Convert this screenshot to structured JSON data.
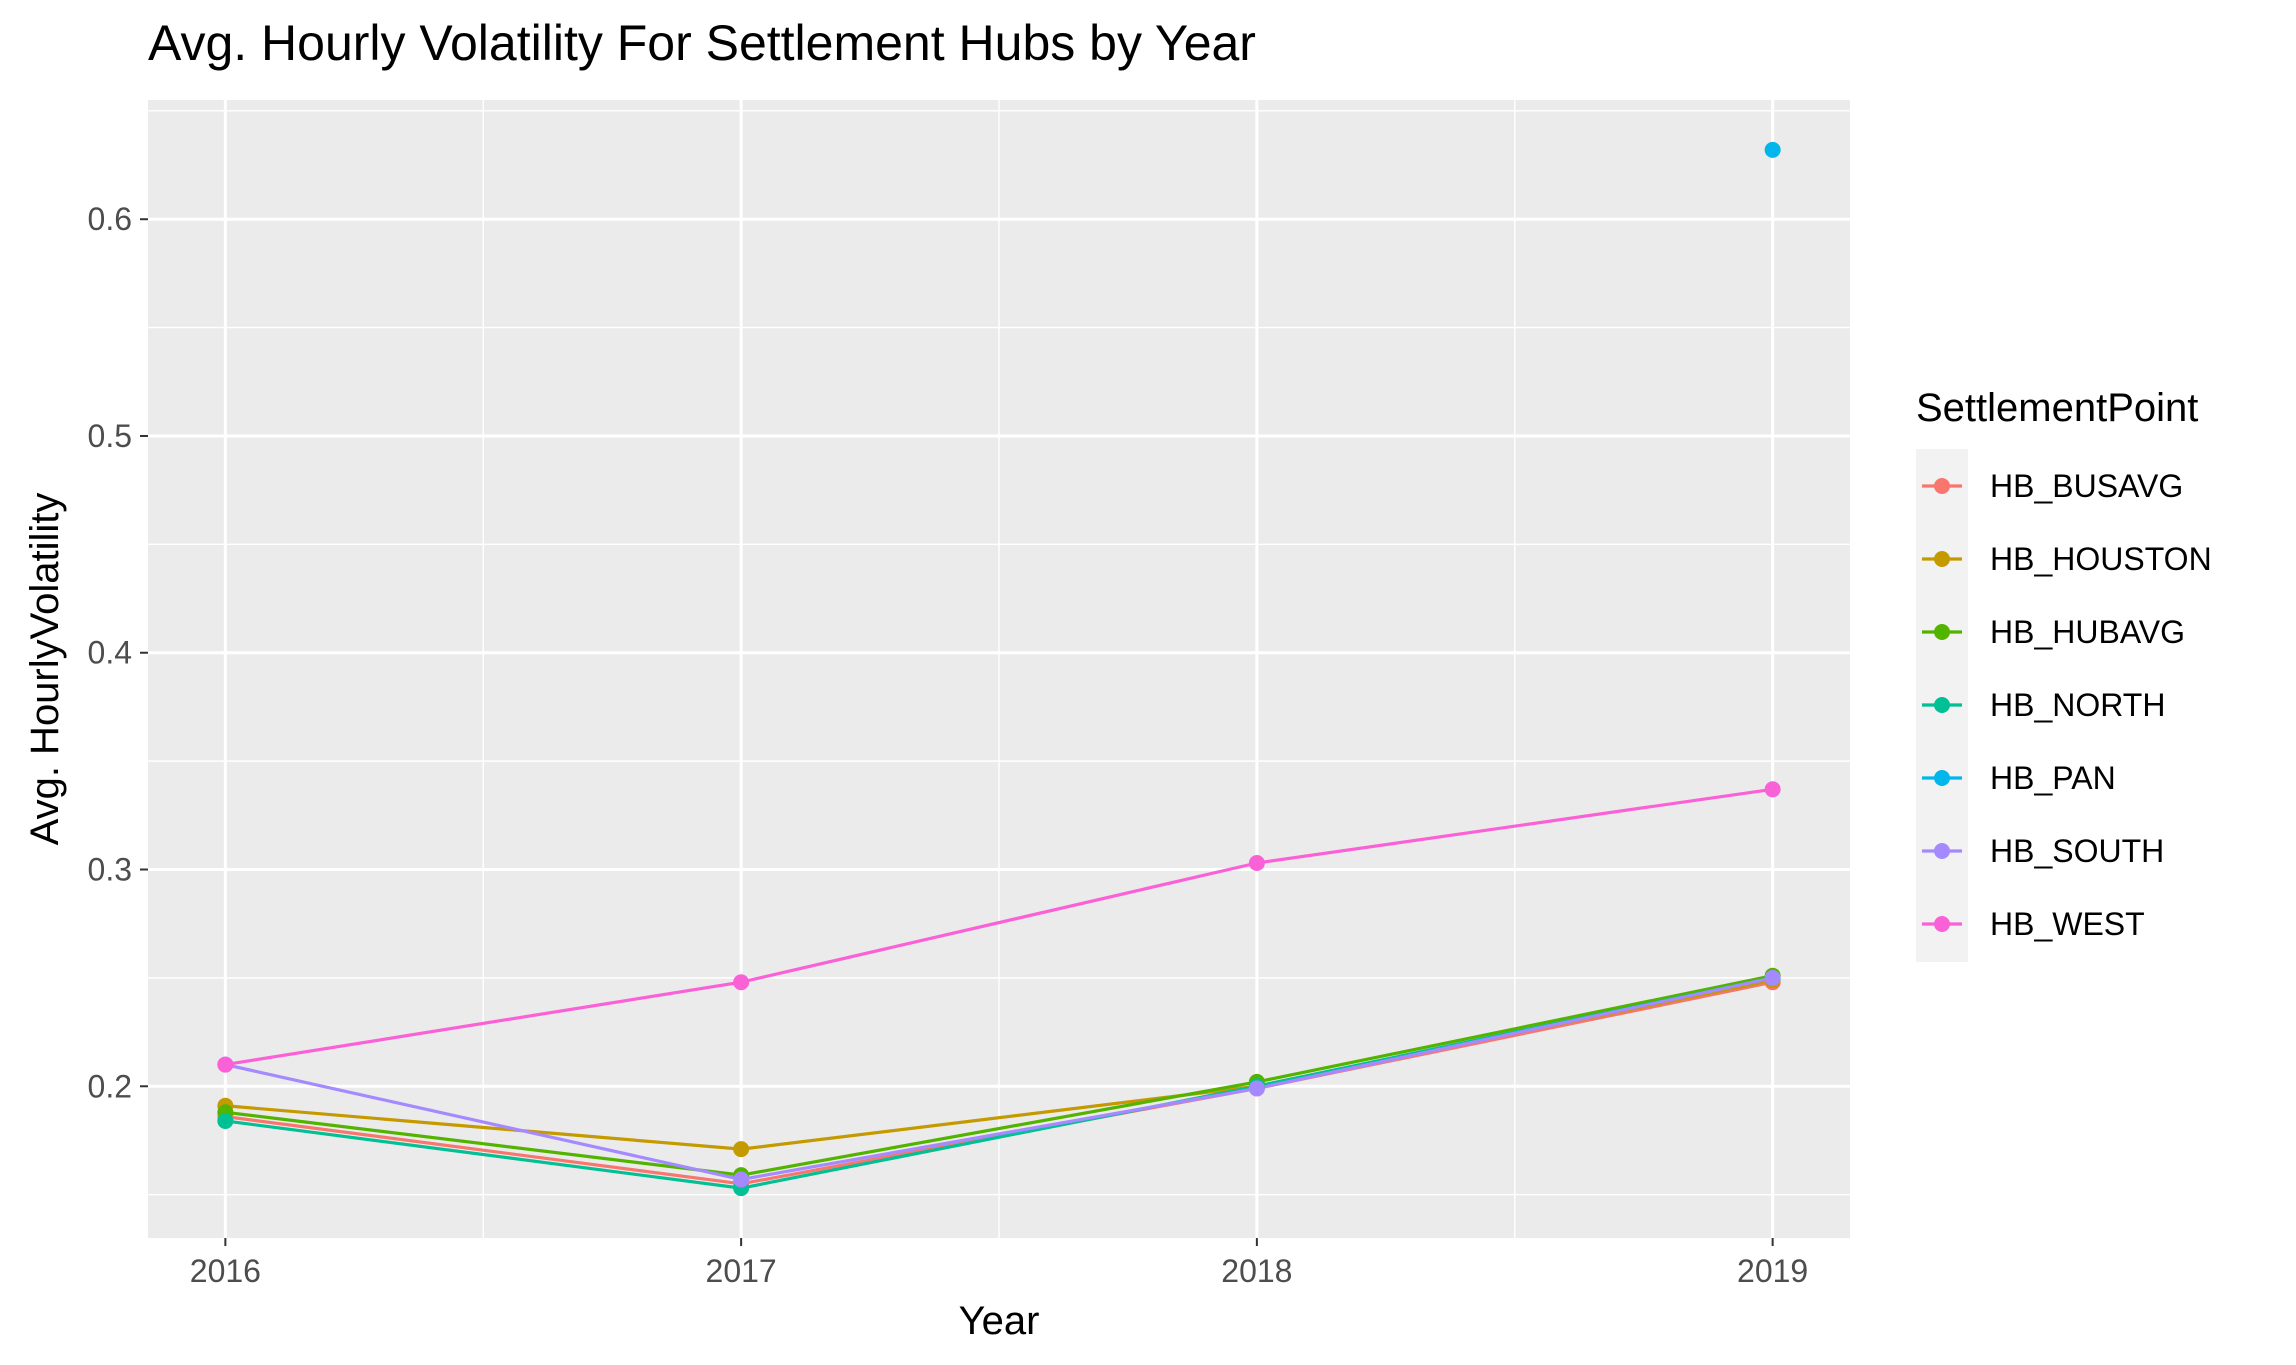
{
  "chart_data": {
    "type": "line",
    "title": "Avg. Hourly Volatility For Settlement Hubs by Year",
    "xlabel": "Year",
    "ylabel": "Avg. HourlyVolatility",
    "x": [
      2016,
      2017,
      2018,
      2019
    ],
    "xlim": [
      2015.85,
      2019.15
    ],
    "ylim": [
      0.13,
      0.655
    ],
    "yticks": [
      0.2,
      0.3,
      0.4,
      0.5,
      0.6
    ],
    "ytick_labels": [
      "0.2",
      "0.3",
      "0.4",
      "0.5",
      "0.6"
    ],
    "xtick_labels": [
      "2016",
      "2017",
      "2018",
      "2019"
    ],
    "grid": true,
    "legend_title": "SettlementPoint",
    "legend_position": "right",
    "series": [
      {
        "name": "HB_BUSAVG",
        "color": "#F8766D",
        "values": [
          0.186,
          0.155,
          0.199,
          0.248
        ]
      },
      {
        "name": "HB_HOUSTON",
        "color": "#C49A00",
        "values": [
          0.191,
          0.171,
          0.2,
          0.249
        ]
      },
      {
        "name": "HB_HUBAVG",
        "color": "#53B400",
        "values": [
          0.188,
          0.159,
          0.202,
          0.251
        ]
      },
      {
        "name": "HB_NORTH",
        "color": "#00C094",
        "values": [
          0.184,
          0.153,
          0.2,
          0.25
        ]
      },
      {
        "name": "HB_PAN",
        "color": "#00B6EB",
        "values": [
          null,
          null,
          null,
          0.632
        ]
      },
      {
        "name": "HB_SOUTH",
        "color": "#A58AFF",
        "values": [
          0.21,
          0.157,
          0.199,
          0.25
        ]
      },
      {
        "name": "HB_WEST",
        "color": "#FB61D7",
        "values": [
          0.21,
          0.248,
          0.303,
          0.337
        ]
      }
    ]
  }
}
